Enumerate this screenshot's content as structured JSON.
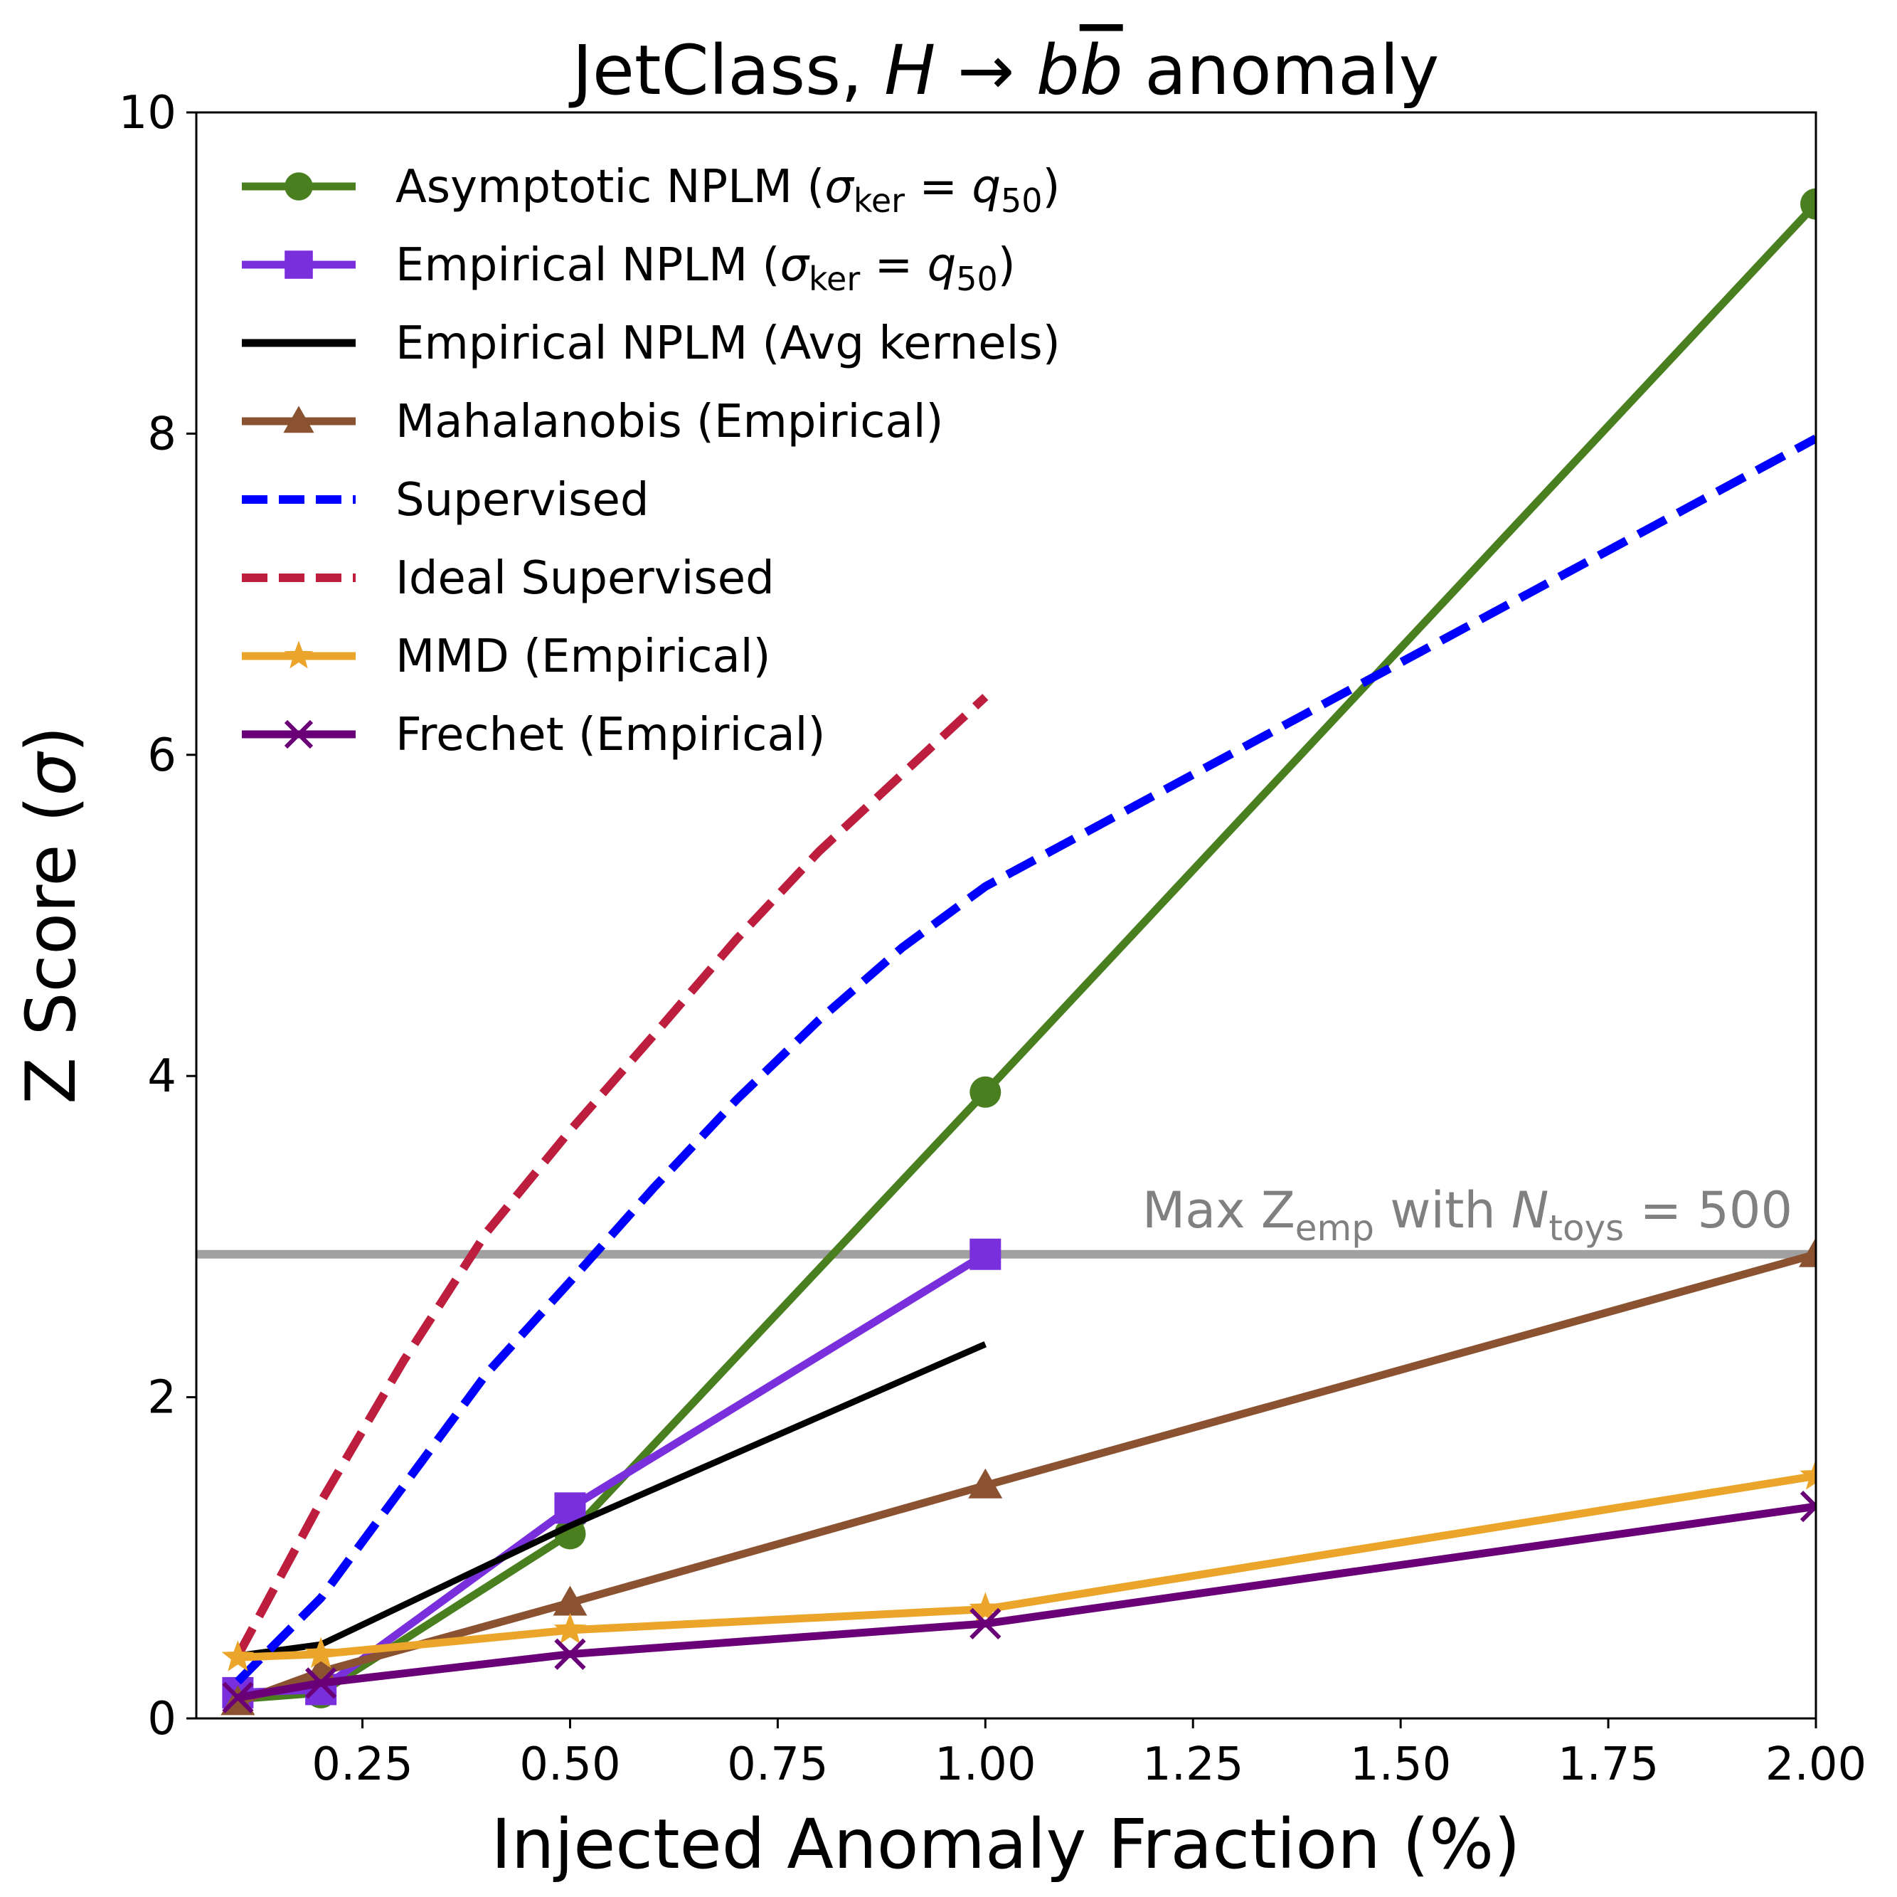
{
  "chart_data": {
    "type": "line",
    "title": "JetClass, H → b b̄ anomaly",
    "title_parts": {
      "prefix": "JetClass, ",
      "math": "H → b",
      "bbar": "b",
      "suffix": " anomaly"
    },
    "xlabel": "Injected Anomaly Fraction (%)",
    "ylabel": "Z Score (σ)",
    "ylabel_parts": {
      "prefix": "Z Score (",
      "sym": "σ",
      "suffix": ")"
    },
    "xlim": [
      0.05,
      2.0
    ],
    "ylim": [
      0,
      10
    ],
    "grid": false,
    "legend_position": "top-left",
    "xticks": [
      0.25,
      0.5,
      0.75,
      1.0,
      1.25,
      1.5,
      1.75,
      2.0
    ],
    "xtick_labels": [
      "0.25",
      "0.50",
      "0.75",
      "1.00",
      "1.25",
      "1.50",
      "1.75",
      "2.00"
    ],
    "yticks": [
      0,
      2,
      4,
      6,
      8,
      10
    ],
    "ytick_labels": [
      "0",
      "2",
      "4",
      "6",
      "8",
      "10"
    ],
    "series": [
      {
        "name": "Asymptotic NPLM (σ_ker = q_50)",
        "legend": {
          "main": "Asymptotic NPLM (",
          "sigma": "σ",
          "sub1": "ker",
          "eq": " = ",
          "q": "q",
          "sub2": "50",
          "close": ")"
        },
        "color": "#4a7f20",
        "marker": "circle",
        "dash": "solid",
        "x": [
          0.1,
          0.2,
          0.5,
          1.0,
          2.0
        ],
        "y": [
          0.12,
          0.16,
          1.15,
          3.9,
          9.43
        ]
      },
      {
        "name": "Empirical NPLM (σ_ker = q_50)",
        "legend": {
          "main": "Empirical NPLM (",
          "sigma": "σ",
          "sub1": "ker",
          "eq": " = ",
          "q": "q",
          "sub2": "50",
          "close": ")"
        },
        "color": "#7a2fdd",
        "marker": "square",
        "dash": "solid",
        "x": [
          0.1,
          0.2,
          0.5,
          1.0
        ],
        "y": [
          0.16,
          0.18,
          1.31,
          2.89
        ]
      },
      {
        "name": "Empirical NPLM (Avg kernels)",
        "legend": {
          "main": "Empirical NPLM (Avg kernels)"
        },
        "color": "#000000",
        "marker": "none",
        "dash": "solid",
        "x": [
          0.1,
          0.2,
          0.5,
          1.0
        ],
        "y": [
          0.39,
          0.46,
          1.2,
          2.33
        ]
      },
      {
        "name": "Mahalanobis (Empirical)",
        "legend": {
          "main": "Mahalanobis (Empirical)"
        },
        "color": "#8b5232",
        "marker": "triangle",
        "dash": "solid",
        "x": [
          0.1,
          0.2,
          0.5,
          1.0,
          2.0
        ],
        "y": [
          0.1,
          0.29,
          0.72,
          1.45,
          2.89
        ]
      },
      {
        "name": "Supervised",
        "legend": {
          "main": "Supervised"
        },
        "color": "#0000ff",
        "marker": "none",
        "dash": "dashed",
        "x": [
          0.1,
          0.2,
          0.3,
          0.4,
          0.5,
          0.6,
          0.7,
          0.8,
          0.9,
          1.0,
          2.0
        ],
        "y": [
          0.23,
          0.75,
          1.45,
          2.15,
          2.72,
          3.3,
          3.85,
          4.35,
          4.8,
          5.18,
          7.97
        ]
      },
      {
        "name": "Ideal Supervised",
        "legend": {
          "main": "Ideal Supervised"
        },
        "color": "#be1e3e",
        "marker": "none",
        "dash": "dashed",
        "x": [
          0.1,
          0.2,
          0.3,
          0.4,
          0.5,
          0.6,
          0.7,
          0.8,
          0.9,
          1.0
        ],
        "y": [
          0.39,
          1.35,
          2.23,
          3.03,
          3.66,
          4.25,
          4.85,
          5.4,
          5.88,
          6.36
        ]
      },
      {
        "name": "MMD (Empirical)",
        "legend": {
          "main": "MMD (Empirical)"
        },
        "color": "#eaa52a",
        "marker": "star",
        "dash": "solid",
        "x": [
          0.1,
          0.2,
          0.5,
          1.0,
          2.0
        ],
        "y": [
          0.38,
          0.4,
          0.55,
          0.68,
          1.51
        ]
      },
      {
        "name": "Frechet (Empirical)",
        "legend": {
          "main": "Frechet (Empirical)"
        },
        "color": "#6a0078",
        "marker": "x",
        "dash": "solid",
        "x": [
          0.1,
          0.2,
          0.5,
          1.0,
          2.0
        ],
        "y": [
          0.13,
          0.22,
          0.4,
          0.59,
          1.32
        ]
      }
    ],
    "hline": {
      "y": 2.89,
      "color": "#a0a0a0",
      "label_parts": {
        "a": "Max Z",
        "sub1": "emp",
        "b": " with ",
        "n": "N",
        "sub2": "toys",
        "c": " = 500"
      },
      "label": "Max Z_emp with N_toys = 500"
    }
  }
}
